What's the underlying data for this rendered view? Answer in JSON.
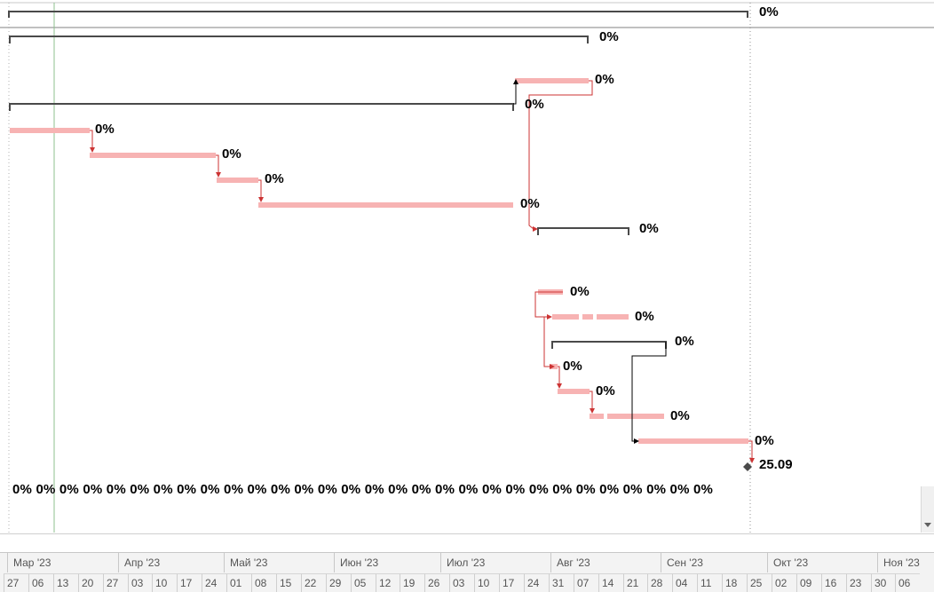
{
  "gantt": {
    "task_labels": [
      "0%",
      "0%",
      "0%",
      "0%",
      "0%",
      "0%",
      "0%",
      "0%",
      "0%",
      "0%",
      "0%",
      "0%",
      "0%",
      "0%",
      "0%",
      "0%",
      "0%"
    ],
    "summary_row_labels": "0% 0% 0% 0% 0% 0% 0% 0% 0% 0% 0% 0% 0% 0% 0% 0% 0% 0% 0% 0% 0% 0% 0% 0% 0% 0% 0% 0% 0% 0%",
    "milestone_date": "25.09",
    "colors": {
      "task_bar": "#f7b3b3",
      "summary_bar": "#4a4a4a",
      "link_line": "#cc3333",
      "today_line": "#8fc08f"
    }
  },
  "timescale": {
    "months": [
      "Мар '23",
      "Апр '23",
      "Май '23",
      "Июн '23",
      "Июл '23",
      "Авг '23",
      "Сен '23",
      "Окт '23",
      "Ноя '23"
    ],
    "days": [
      "27",
      "06",
      "13",
      "20",
      "27",
      "03",
      "10",
      "17",
      "24",
      "01",
      "08",
      "15",
      "22",
      "29",
      "05",
      "12",
      "19",
      "26",
      "03",
      "10",
      "17",
      "24",
      "31",
      "07",
      "14",
      "21",
      "28",
      "04",
      "11",
      "18",
      "25",
      "02",
      "09",
      "16",
      "23",
      "30",
      "06"
    ]
  }
}
